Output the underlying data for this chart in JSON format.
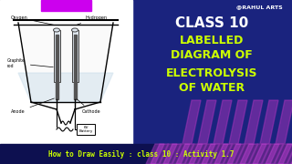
{
  "bg_color": "#1a237e",
  "left_panel_bg": "#f0f0f0",
  "title_class": "CLASS 10",
  "title_main_line1": "LABELLED",
  "title_main_line2": "DIAGRAM OF",
  "title_main_line3": "ELECTROLYSIS",
  "title_main_line4": "OF WATER",
  "bottom_text": "How to Draw Easily : class 10 : Activity 1.7",
  "watermark": "@RAHUL ARTS",
  "title_color": "#ccff00",
  "class_color": "#ffffff",
  "bottom_text_color": "#ccff00",
  "purple_stripe": "#cc00ee",
  "stripe_pink": "#dd44cc",
  "stripe_purple": "#8822aa"
}
